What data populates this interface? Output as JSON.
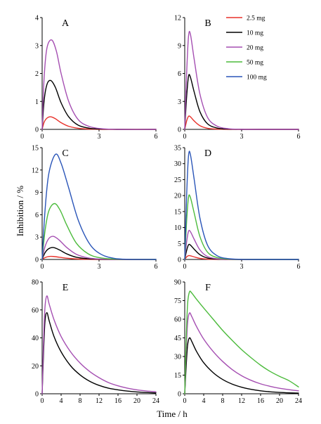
{
  "figure": {
    "ylabel": "Inhibition / %",
    "xlabel": "Time / h"
  },
  "legend": [
    {
      "label": "2.5 mg",
      "color": "#e8312a"
    },
    {
      "label": "10 mg",
      "color": "#000000"
    },
    {
      "label": "20 mg",
      "color": "#a54fb2"
    },
    {
      "label": "50 mg",
      "color": "#4cbb3c"
    },
    {
      "label": "100 mg",
      "color": "#2a55b8"
    }
  ],
  "chart_data": [
    {
      "type": "line",
      "panel": "A",
      "title": "A",
      "xlim": [
        0,
        6
      ],
      "ylim": [
        0,
        4
      ],
      "xticks": [
        "0",
        "3",
        "6"
      ],
      "yticks": [
        "0",
        "1",
        "2",
        "3",
        "4"
      ],
      "series": [
        {
          "name": "2.5 mg",
          "color": "#e8312a",
          "x": [
            0,
            0.1,
            0.25,
            0.45,
            0.7,
            1.0,
            1.4,
            1.9,
            2.5,
            3.2,
            4.0,
            6.0
          ],
          "y": [
            0,
            0.25,
            0.4,
            0.45,
            0.38,
            0.24,
            0.11,
            0.04,
            0.01,
            0,
            0,
            0
          ]
        },
        {
          "name": "10 mg",
          "color": "#000000",
          "x": [
            0,
            0.1,
            0.25,
            0.45,
            0.7,
            1.0,
            1.4,
            1.9,
            2.5,
            3.2,
            4.0,
            6.0
          ],
          "y": [
            0,
            1.0,
            1.6,
            1.75,
            1.5,
            0.95,
            0.45,
            0.15,
            0.04,
            0.01,
            0,
            0
          ]
        },
        {
          "name": "20 mg",
          "color": "#a54fb2",
          "x": [
            0,
            0.1,
            0.25,
            0.5,
            0.75,
            1.0,
            1.4,
            1.9,
            2.5,
            3.2,
            4.0,
            6.0
          ],
          "y": [
            0,
            1.8,
            2.9,
            3.2,
            2.8,
            2.0,
            1.0,
            0.35,
            0.1,
            0.02,
            0,
            0
          ]
        }
      ]
    },
    {
      "type": "line",
      "panel": "B",
      "title": "B",
      "xlim": [
        0,
        6
      ],
      "ylim": [
        0,
        12
      ],
      "xticks": [
        "0",
        "3",
        "6"
      ],
      "yticks": [
        "0",
        "3",
        "6",
        "9",
        "12"
      ],
      "series": [
        {
          "name": "2.5 mg",
          "color": "#e8312a",
          "x": [
            0,
            0.1,
            0.2,
            0.3,
            0.5,
            0.8,
            1.2,
            1.7,
            2.3,
            3.0,
            4.0,
            6.0
          ],
          "y": [
            0,
            0.9,
            1.4,
            1.35,
            0.9,
            0.4,
            0.12,
            0.03,
            0,
            0,
            0,
            0
          ]
        },
        {
          "name": "10 mg",
          "color": "#000000",
          "x": [
            0,
            0.1,
            0.2,
            0.3,
            0.5,
            0.8,
            1.2,
            1.7,
            2.3,
            3.0,
            4.0,
            6.0
          ],
          "y": [
            0,
            3.5,
            5.7,
            5.6,
            4.0,
            1.9,
            0.6,
            0.15,
            0.03,
            0,
            0,
            0
          ]
        },
        {
          "name": "20 mg",
          "color": "#a54fb2",
          "x": [
            0,
            0.1,
            0.2,
            0.3,
            0.5,
            0.8,
            1.2,
            1.7,
            2.3,
            3.0,
            4.0,
            6.0
          ],
          "y": [
            0,
            6.0,
            10.0,
            10.2,
            7.5,
            3.8,
            1.3,
            0.35,
            0.07,
            0.01,
            0,
            0
          ]
        }
      ]
    },
    {
      "type": "line",
      "panel": "C",
      "title": "C",
      "xlim": [
        0,
        6
      ],
      "ylim": [
        0,
        15
      ],
      "xticks": [
        "0",
        "3",
        "6"
      ],
      "yticks": [
        "0",
        "3",
        "6",
        "9",
        "12",
        "15"
      ],
      "series": [
        {
          "name": "2.5 mg",
          "color": "#e8312a",
          "x": [
            0,
            0.15,
            0.35,
            0.6,
            0.9,
            1.3,
            1.8,
            2.4,
            3.0,
            3.8,
            4.6,
            6.0
          ],
          "y": [
            0,
            0.25,
            0.4,
            0.4,
            0.3,
            0.17,
            0.07,
            0.02,
            0,
            0,
            0,
            0
          ]
        },
        {
          "name": "10 mg",
          "color": "#000000",
          "x": [
            0,
            0.15,
            0.35,
            0.6,
            0.9,
            1.3,
            1.8,
            2.4,
            3.0,
            3.8,
            4.6,
            6.0
          ],
          "y": [
            0,
            0.9,
            1.45,
            1.6,
            1.3,
            0.75,
            0.3,
            0.1,
            0.03,
            0,
            0,
            0
          ]
        },
        {
          "name": "20 mg",
          "color": "#a54fb2",
          "x": [
            0,
            0.15,
            0.35,
            0.6,
            0.9,
            1.3,
            1.8,
            2.4,
            3.0,
            3.8,
            4.6,
            6.0
          ],
          "y": [
            0,
            1.7,
            2.8,
            3.1,
            2.6,
            1.6,
            0.7,
            0.22,
            0.06,
            0.01,
            0,
            0
          ]
        },
        {
          "name": "50 mg",
          "color": "#4cbb3c",
          "x": [
            0,
            0.15,
            0.35,
            0.65,
            0.95,
            1.3,
            1.8,
            2.4,
            3.0,
            3.8,
            4.6,
            6.0
          ],
          "y": [
            0,
            3.8,
            6.5,
            7.5,
            6.6,
            4.6,
            2.2,
            0.8,
            0.25,
            0.05,
            0.01,
            0
          ]
        },
        {
          "name": "100 mg",
          "color": "#2a55b8",
          "x": [
            0,
            0.15,
            0.35,
            0.7,
            1.0,
            1.4,
            1.9,
            2.5,
            3.1,
            3.8,
            4.6,
            6.0
          ],
          "y": [
            0,
            6.5,
            11.5,
            14.1,
            12.9,
            9.6,
            5.3,
            2.1,
            0.7,
            0.15,
            0.02,
            0
          ]
        }
      ]
    },
    {
      "type": "line",
      "panel": "D",
      "title": "D",
      "xlim": [
        0,
        6
      ],
      "ylim": [
        0,
        35
      ],
      "xticks": [
        "0",
        "3",
        "6"
      ],
      "yticks": [
        "0",
        "5",
        "10",
        "15",
        "20",
        "25",
        "30",
        "35"
      ],
      "series": [
        {
          "name": "2.5 mg",
          "color": "#e8312a",
          "x": [
            0,
            0.1,
            0.2,
            0.3,
            0.5,
            0.8,
            1.2,
            1.7,
            2.3,
            3.0,
            4.0,
            6.0
          ],
          "y": [
            0,
            0.8,
            1.2,
            1.15,
            0.8,
            0.35,
            0.1,
            0.02,
            0,
            0,
            0,
            0
          ]
        },
        {
          "name": "10 mg",
          "color": "#000000",
          "x": [
            0,
            0.1,
            0.2,
            0.3,
            0.5,
            0.8,
            1.2,
            1.7,
            2.3,
            3.0,
            4.0,
            6.0
          ],
          "y": [
            0,
            2.8,
            4.6,
            4.5,
            3.2,
            1.5,
            0.45,
            0.1,
            0.02,
            0,
            0,
            0
          ]
        },
        {
          "name": "20 mg",
          "color": "#a54fb2",
          "x": [
            0,
            0.1,
            0.2,
            0.3,
            0.5,
            0.8,
            1.2,
            1.7,
            2.3,
            3.0,
            4.0,
            6.0
          ],
          "y": [
            0,
            5.5,
            8.8,
            8.7,
            6.3,
            3.0,
            0.9,
            0.22,
            0.04,
            0,
            0,
            0
          ]
        },
        {
          "name": "50 mg",
          "color": "#4cbb3c",
          "x": [
            0,
            0.1,
            0.2,
            0.3,
            0.5,
            0.8,
            1.2,
            1.7,
            2.3,
            3.0,
            4.0,
            6.0
          ],
          "y": [
            0,
            12.0,
            19.5,
            19.4,
            14.5,
            7.2,
            2.3,
            0.6,
            0.12,
            0.02,
            0,
            0
          ]
        },
        {
          "name": "100 mg",
          "color": "#2a55b8",
          "x": [
            0,
            0.1,
            0.2,
            0.3,
            0.5,
            0.8,
            1.2,
            1.7,
            2.3,
            3.0,
            4.0,
            6.0
          ],
          "y": [
            0,
            20.0,
            32.5,
            32.8,
            25.0,
            13.0,
            4.5,
            1.2,
            0.25,
            0.04,
            0,
            0
          ]
        }
      ]
    },
    {
      "type": "line",
      "panel": "E",
      "title": "E",
      "xlim": [
        0,
        24
      ],
      "ylim": [
        0,
        80
      ],
      "xticks": [
        "0",
        "4",
        "8",
        "12",
        "16",
        "20",
        "24"
      ],
      "yticks": [
        "0",
        "20",
        "40",
        "60",
        "80"
      ],
      "series": [
        {
          "name": "10 mg",
          "color": "#000000",
          "x": [
            0,
            0.3,
            0.6,
            1.0,
            1.5,
            2.5,
            4,
            6,
            8,
            10,
            12,
            14,
            16,
            18,
            20,
            22,
            24
          ],
          "y": [
            0,
            30,
            52,
            58,
            52,
            41,
            30,
            20,
            13.5,
            9,
            6,
            4,
            2.8,
            1.9,
            1.3,
            0.9,
            0.6
          ]
        },
        {
          "name": "20 mg",
          "color": "#a54fb2",
          "x": [
            0,
            0.3,
            0.6,
            1.0,
            1.5,
            2.5,
            4,
            6,
            8,
            10,
            12,
            14,
            16,
            18,
            20,
            22,
            24
          ],
          "y": [
            0,
            38,
            62,
            70,
            64,
            53,
            41,
            30,
            22,
            16,
            11.5,
            8,
            5.7,
            4,
            2.8,
            2,
            1.4
          ]
        }
      ]
    },
    {
      "type": "line",
      "panel": "F",
      "title": "F",
      "xlim": [
        0,
        24
      ],
      "ylim": [
        0,
        90
      ],
      "xticks": [
        "0",
        "4",
        "8",
        "12",
        "16",
        "20",
        "24"
      ],
      "yticks": [
        "0",
        "15",
        "30",
        "45",
        "60",
        "75",
        "90"
      ],
      "series": [
        {
          "name": "10 mg",
          "color": "#000000",
          "x": [
            0,
            0.3,
            0.6,
            1.0,
            1.5,
            2.5,
            4,
            6,
            8,
            10,
            12,
            14,
            16,
            18,
            20,
            22,
            24
          ],
          "y": [
            0,
            22,
            39,
            45,
            42,
            34,
            25,
            17,
            11.5,
            7.8,
            5.3,
            3.6,
            2.4,
            1.6,
            1.1,
            0.75,
            0.5
          ]
        },
        {
          "name": "20 mg",
          "color": "#a54fb2",
          "x": [
            0,
            0.3,
            0.6,
            1.0,
            1.5,
            2.5,
            4,
            6,
            8,
            10,
            12,
            14,
            16,
            18,
            20,
            22,
            24
          ],
          "y": [
            0,
            33,
            57,
            65,
            62,
            54,
            44,
            34,
            26,
            19.5,
            14.5,
            10.8,
            8,
            6,
            4.4,
            3.3,
            2.4
          ]
        },
        {
          "name": "50 mg",
          "color": "#4cbb3c",
          "x": [
            0,
            0.3,
            0.6,
            1.0,
            1.5,
            2.5,
            4,
            6,
            8,
            10,
            12,
            14,
            16,
            18,
            20,
            22,
            24
          ],
          "y": [
            0,
            42,
            72,
            82,
            81,
            76,
            69,
            60,
            51,
            43,
            35.5,
            29,
            23,
            18,
            14,
            10.5,
            5.5
          ]
        }
      ]
    }
  ]
}
